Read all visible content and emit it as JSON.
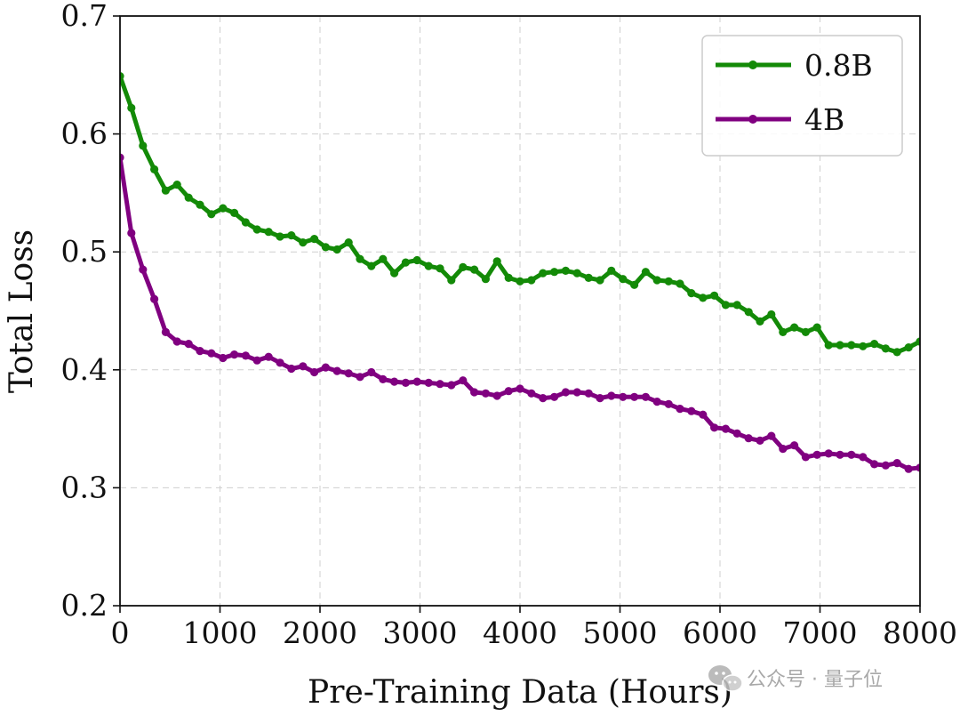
{
  "chart_data": {
    "type": "line",
    "title": "",
    "xlabel": "Pre-Training Data (Hours)",
    "ylabel": "Total Loss",
    "xlim": [
      0,
      8000
    ],
    "ylim": [
      0.2,
      0.7
    ],
    "x_ticks": [
      0,
      1000,
      2000,
      3000,
      4000,
      5000,
      6000,
      7000,
      8000
    ],
    "x_tick_labels": [
      "0",
      "1000",
      "2000",
      "3000",
      "4000",
      "5000",
      "6000",
      "7000",
      "8000"
    ],
    "y_ticks": [
      0.2,
      0.3,
      0.4,
      0.5,
      0.6,
      0.7
    ],
    "y_tick_labels": [
      "0.2",
      "0.3",
      "0.4",
      "0.5",
      "0.6",
      "0.7"
    ],
    "grid": true,
    "legend_position": "top-right",
    "x": [
      0,
      114,
      229,
      343,
      457,
      571,
      686,
      800,
      914,
      1029,
      1143,
      1257,
      1371,
      1486,
      1600,
      1714,
      1829,
      1943,
      2057,
      2171,
      2286,
      2400,
      2514,
      2629,
      2743,
      2857,
      2971,
      3086,
      3200,
      3314,
      3429,
      3543,
      3657,
      3771,
      3886,
      4000,
      4114,
      4229,
      4343,
      4457,
      4571,
      4686,
      4800,
      4914,
      5029,
      5143,
      5257,
      5371,
      5486,
      5600,
      5714,
      5829,
      5943,
      6057,
      6171,
      6286,
      6400,
      6514,
      6629,
      6743,
      6857,
      6971,
      7086,
      7200,
      7314,
      7429,
      7543,
      7657,
      7771,
      7886,
      8000
    ],
    "series": [
      {
        "name": "0.8B",
        "color": "#138a07",
        "values": [
          0.649,
          0.622,
          0.59,
          0.57,
          0.552,
          0.557,
          0.546,
          0.54,
          0.532,
          0.537,
          0.533,
          0.525,
          0.519,
          0.517,
          0.513,
          0.514,
          0.508,
          0.511,
          0.504,
          0.502,
          0.508,
          0.494,
          0.488,
          0.494,
          0.482,
          0.491,
          0.493,
          0.488,
          0.486,
          0.476,
          0.487,
          0.485,
          0.477,
          0.492,
          0.478,
          0.475,
          0.476,
          0.482,
          0.483,
          0.484,
          0.482,
          0.478,
          0.476,
          0.484,
          0.477,
          0.472,
          0.483,
          0.476,
          0.475,
          0.473,
          0.465,
          0.461,
          0.463,
          0.455,
          0.455,
          0.449,
          0.441,
          0.447,
          0.432,
          0.436,
          0.432,
          0.436,
          0.421,
          0.421,
          0.421,
          0.42,
          0.422,
          0.418,
          0.415,
          0.419,
          0.424
        ]
      },
      {
        "name": "4B",
        "color": "#800080",
        "values": [
          0.58,
          0.516,
          0.485,
          0.46,
          0.432,
          0.424,
          0.422,
          0.416,
          0.414,
          0.41,
          0.413,
          0.412,
          0.408,
          0.411,
          0.406,
          0.401,
          0.403,
          0.398,
          0.402,
          0.399,
          0.397,
          0.394,
          0.398,
          0.392,
          0.39,
          0.389,
          0.39,
          0.389,
          0.388,
          0.387,
          0.391,
          0.381,
          0.38,
          0.378,
          0.382,
          0.384,
          0.38,
          0.376,
          0.377,
          0.381,
          0.381,
          0.38,
          0.376,
          0.378,
          0.377,
          0.377,
          0.377,
          0.373,
          0.371,
          0.367,
          0.365,
          0.362,
          0.351,
          0.35,
          0.346,
          0.342,
          0.34,
          0.344,
          0.333,
          0.336,
          0.326,
          0.328,
          0.329,
          0.328,
          0.328,
          0.326,
          0.32,
          0.319,
          0.321,
          0.316,
          0.317
        ]
      }
    ]
  },
  "watermark": {
    "text": "公众号 · 量子位",
    "icon": "wechat-icon"
  }
}
